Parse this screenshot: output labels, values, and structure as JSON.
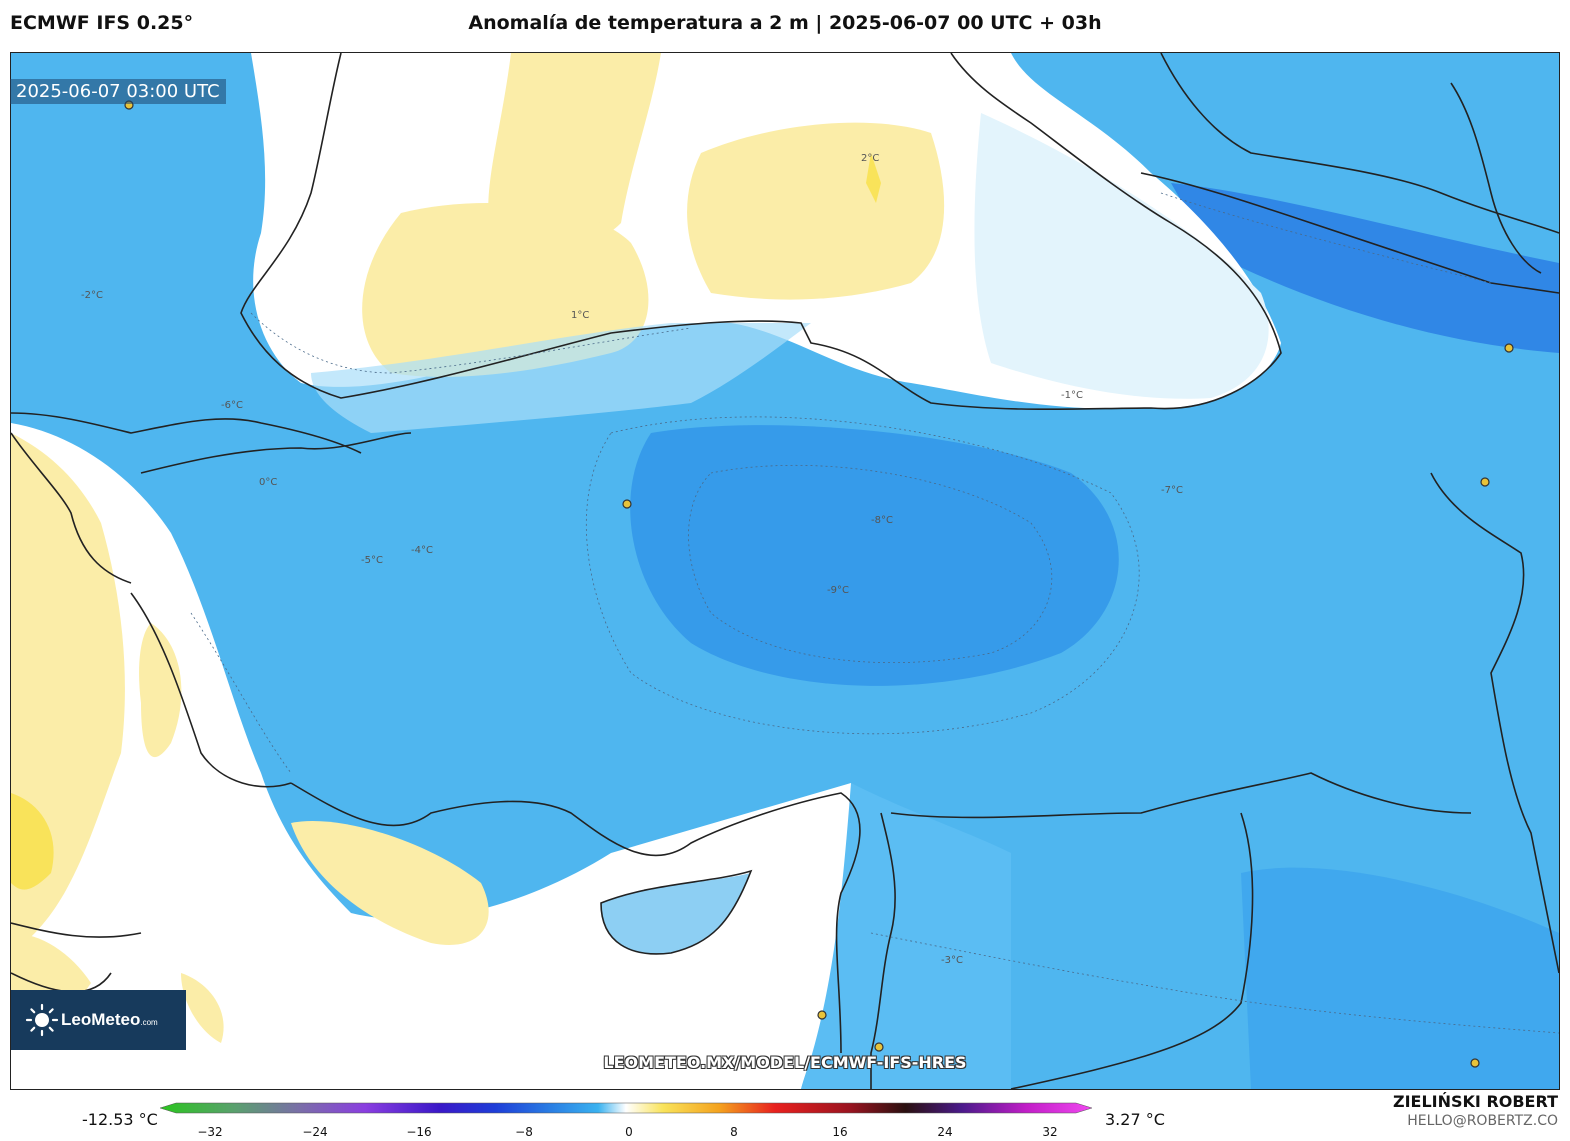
{
  "header": {
    "model": "ECMWF IFS 0.25°",
    "title": "Anomalía de temperatura a 2 m | 2025-06-07 00 UTC + 03h"
  },
  "map": {
    "valid_time": "2025-06-07 03:00 UTC",
    "url_overlay": "LEOMETEO.MX/MODEL/ECMWF-IFS-HRES",
    "contour_labels": [
      "-9°C",
      "-8°C",
      "-7°C",
      "-6°C",
      "-5°C",
      "-4°C",
      "-3°C",
      "-2°C",
      "-1°C",
      "0°C",
      "1°C",
      "2°C"
    ],
    "colors": {
      "strong_cold": "#1e6fe8",
      "cold": "#2ea6f0",
      "mild_cold": "#5bc4f6",
      "slight_cold": "#a9def9",
      "neutral": "#ffffff",
      "warm": "#fbeda8",
      "warmer": "#f9e35a"
    }
  },
  "logo": {
    "brand": "LeoMeteo",
    "suffix": ".com"
  },
  "colorbar": {
    "min_value": "-12.53 °C",
    "max_value": "3.27 °C",
    "ticks": [
      "−32",
      "−24",
      "−16",
      "−8",
      "0",
      "8",
      "16",
      "24",
      "32"
    ]
  },
  "credit": {
    "name": "ZIELIŃSKI ROBERT",
    "email": "HELLO@ROBERTZ.CO"
  }
}
